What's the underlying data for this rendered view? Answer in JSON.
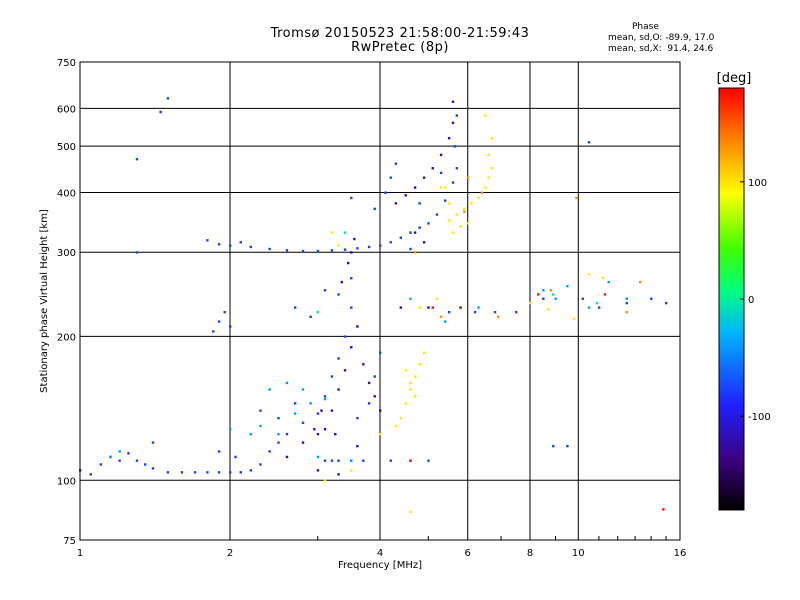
{
  "title": "Tromsø 20150523 21:58:00-21:59:43",
  "subtitle": "RwPretec (8p)",
  "phase_info": {
    "header": "Phase",
    "line1": "mean, sd,O: -89.9, 17.0",
    "line2": "mean, sd,X:  91.4, 24.6"
  },
  "chart_data": {
    "type": "scatter",
    "xlabel": "Frequency [MHz]",
    "ylabel": "Stationary phase Virtual Height [km]",
    "xscale": "log",
    "yscale": "log",
    "xlim": [
      1,
      16
    ],
    "ylim": [
      75,
      750
    ],
    "x_ticks": [
      1,
      2,
      4,
      6,
      8,
      10,
      16
    ],
    "x_tick_labels": [
      "1",
      "2",
      "4",
      "6",
      "8",
      "10",
      "16"
    ],
    "y_ticks": [
      75,
      100,
      200,
      300,
      400,
      500,
      600,
      750
    ],
    "y_tick_labels": [
      "75",
      "100",
      "200",
      "300",
      "400",
      "500",
      "600",
      "750"
    ],
    "grid": true,
    "colorbar": {
      "label": "[deg]",
      "range": [
        -180,
        180
      ],
      "ticks": [
        100,
        0,
        -100
      ],
      "tick_labels": [
        "100",
        "0",
        "-100"
      ],
      "colors": [
        "#000000",
        "#3c0080",
        "#2020ff",
        "#00b4ff",
        "#00ff80",
        "#40ff00",
        "#ffff00",
        "#ff8000",
        "#ff0000"
      ]
    },
    "series": [
      {
        "phase": -100,
        "color": "#2040e0",
        "points": [
          [
            1.0,
            105
          ],
          [
            1.05,
            103
          ],
          [
            1.1,
            108
          ],
          [
            1.15,
            112
          ],
          [
            1.2,
            110
          ],
          [
            1.25,
            114
          ],
          [
            1.3,
            110
          ],
          [
            1.35,
            108
          ],
          [
            1.4,
            106
          ],
          [
            1.5,
            104
          ],
          [
            1.6,
            104
          ],
          [
            1.7,
            104
          ],
          [
            1.8,
            104
          ],
          [
            1.9,
            104
          ],
          [
            2.0,
            104
          ],
          [
            2.1,
            104
          ],
          [
            2.2,
            105
          ],
          [
            2.3,
            108
          ],
          [
            2.4,
            115
          ],
          [
            2.5,
            120
          ],
          [
            2.6,
            125
          ],
          [
            2.8,
            132
          ],
          [
            3.0,
            138
          ],
          [
            1.85,
            205
          ],
          [
            1.9,
            215
          ],
          [
            1.95,
            225
          ],
          [
            2.0,
            210
          ],
          [
            1.8,
            318
          ],
          [
            1.9,
            312
          ],
          [
            2.0,
            310
          ],
          [
            2.1,
            315
          ],
          [
            2.2,
            308
          ],
          [
            2.4,
            305
          ],
          [
            2.6,
            303
          ],
          [
            2.8,
            302
          ],
          [
            3.0,
            302
          ],
          [
            3.2,
            303
          ],
          [
            3.4,
            304
          ],
          [
            3.6,
            306
          ],
          [
            3.8,
            308
          ],
          [
            4.0,
            310
          ],
          [
            4.2,
            315
          ],
          [
            4.4,
            322
          ],
          [
            4.6,
            330
          ],
          [
            4.8,
            338
          ],
          [
            5.0,
            345
          ],
          [
            5.2,
            360
          ],
          [
            5.4,
            385
          ],
          [
            5.6,
            420
          ],
          [
            5.7,
            450
          ],
          [
            5.65,
            500
          ],
          [
            5.7,
            580
          ],
          [
            4.1,
            400
          ],
          [
            4.2,
            430
          ],
          [
            4.3,
            460
          ],
          [
            3.1,
            150
          ],
          [
            3.2,
            165
          ],
          [
            3.3,
            180
          ],
          [
            3.4,
            200
          ],
          [
            3.5,
            230
          ],
          [
            3.5,
            265
          ],
          [
            3.6,
            135
          ],
          [
            3.8,
            145
          ],
          [
            3.9,
            165
          ],
          [
            4.0,
            185
          ],
          [
            3.1,
            110
          ],
          [
            3.2,
            110
          ],
          [
            3.3,
            110
          ],
          [
            3.5,
            110
          ],
          [
            3.7,
            110
          ],
          [
            4.2,
            110
          ],
          [
            4.6,
            110
          ],
          [
            5.0,
            110
          ],
          [
            1.4,
            120
          ],
          [
            1.3,
            470
          ],
          [
            1.45,
            590
          ],
          [
            1.5,
            630
          ],
          [
            1.3,
            300
          ],
          [
            10.5,
            510
          ],
          [
            9.5,
            118
          ],
          [
            8.9,
            118
          ],
          [
            7.5,
            225
          ],
          [
            6.8,
            225
          ],
          [
            6.2,
            225
          ],
          [
            5.5,
            225
          ],
          [
            8.5,
            240
          ],
          [
            10.2,
            240
          ],
          [
            11.0,
            230
          ],
          [
            12.5,
            235
          ],
          [
            14.0,
            240
          ],
          [
            15.0,
            235
          ],
          [
            3.1,
            250
          ],
          [
            3.3,
            245
          ],
          [
            2.9,
            220
          ],
          [
            2.7,
            230
          ],
          [
            2.3,
            140
          ],
          [
            2.5,
            135
          ],
          [
            2.7,
            145
          ],
          [
            1.9,
            115
          ],
          [
            2.05,
            112
          ],
          [
            4.8,
            380
          ],
          [
            5.3,
            440
          ],
          [
            4.6,
            305
          ],
          [
            3.5,
            390
          ],
          [
            3.9,
            370
          ]
        ]
      },
      {
        "phase": -130,
        "color": "#3010a0",
        "points": [
          [
            3.0,
            125
          ],
          [
            3.1,
            128
          ],
          [
            3.2,
            140
          ],
          [
            3.3,
            155
          ],
          [
            3.4,
            170
          ],
          [
            3.5,
            190
          ],
          [
            3.6,
            210
          ],
          [
            3.7,
            175
          ],
          [
            3.8,
            160
          ],
          [
            3.9,
            150
          ],
          [
            4.0,
            140
          ],
          [
            3.35,
            260
          ],
          [
            3.45,
            285
          ],
          [
            3.5,
            300
          ],
          [
            3.55,
            320
          ],
          [
            4.3,
            380
          ],
          [
            4.5,
            395
          ],
          [
            4.7,
            410
          ],
          [
            4.9,
            430
          ],
          [
            5.1,
            450
          ],
          [
            5.3,
            480
          ],
          [
            5.5,
            520
          ],
          [
            5.6,
            560
          ],
          [
            5.6,
            620
          ],
          [
            3.0,
            105
          ],
          [
            3.3,
            103
          ],
          [
            3.6,
            118
          ],
          [
            2.6,
            112
          ],
          [
            2.8,
            120
          ],
          [
            4.4,
            230
          ],
          [
            5.0,
            230
          ],
          [
            5.8,
            230
          ],
          [
            4.7,
            330
          ],
          [
            4.9,
            315
          ],
          [
            3.05,
            140
          ],
          [
            3.25,
            125
          ],
          [
            2.95,
            128
          ]
        ]
      },
      {
        "phase": -80,
        "color": "#00a0f0",
        "points": [
          [
            2.3,
            130
          ],
          [
            2.5,
            125
          ],
          [
            2.7,
            138
          ],
          [
            2.9,
            145
          ],
          [
            3.1,
            148
          ],
          [
            2.4,
            155
          ],
          [
            2.6,
            160
          ],
          [
            2.8,
            155
          ],
          [
            1.2,
            115
          ],
          [
            1.15,
            112
          ],
          [
            8.5,
            250
          ],
          [
            9.0,
            240
          ],
          [
            9.5,
            255
          ],
          [
            10.5,
            230
          ],
          [
            11.5,
            260
          ],
          [
            12.5,
            240
          ],
          [
            3.5,
            110
          ],
          [
            3.0,
            112
          ],
          [
            2.2,
            125
          ],
          [
            2.0,
            128
          ],
          [
            4.6,
            240
          ],
          [
            5.4,
            215
          ],
          [
            6.3,
            230
          ]
        ]
      },
      {
        "phase": 110,
        "color": "#f0f000",
        "points": [
          [
            4.3,
            130
          ],
          [
            4.4,
            135
          ],
          [
            4.5,
            145
          ],
          [
            4.6,
            155
          ],
          [
            4.7,
            165
          ],
          [
            4.8,
            175
          ],
          [
            4.9,
            185
          ],
          [
            4.5,
            170
          ],
          [
            4.6,
            160
          ],
          [
            4.7,
            150
          ],
          [
            5.5,
            350
          ],
          [
            5.7,
            360
          ],
          [
            5.9,
            370
          ],
          [
            6.1,
            380
          ],
          [
            6.3,
            390
          ],
          [
            6.5,
            410
          ],
          [
            6.6,
            430
          ],
          [
            6.7,
            450
          ],
          [
            6.6,
            480
          ],
          [
            6.7,
            520
          ],
          [
            6.5,
            580
          ],
          [
            5.8,
            340
          ],
          [
            6.0,
            345
          ],
          [
            5.6,
            330
          ],
          [
            5.5,
            380
          ],
          [
            5.4,
            410
          ],
          [
            3.3,
            310
          ],
          [
            3.2,
            330
          ],
          [
            10.5,
            270
          ],
          [
            11.2,
            265
          ],
          [
            3.5,
            105
          ],
          [
            3.1,
            100
          ],
          [
            4.6,
            86
          ],
          [
            5.2,
            240
          ],
          [
            8.0,
            235
          ],
          [
            8.7,
            228
          ],
          [
            4.0,
            125
          ],
          [
            5.3,
            410
          ],
          [
            4.8,
            230
          ],
          [
            9.8,
            218
          ]
        ]
      },
      {
        "phase": 140,
        "color": "#ff9000",
        "points": [
          [
            5.9,
            365
          ],
          [
            6.4,
            400
          ],
          [
            4.7,
            300
          ],
          [
            6.0,
            430
          ],
          [
            5.3,
            220
          ],
          [
            6.9,
            220
          ],
          [
            8.8,
            250
          ],
          [
            12.5,
            225
          ],
          [
            13.3,
            260
          ],
          [
            9.9,
            390
          ]
        ]
      },
      {
        "phase": 170,
        "color": "#ff1010",
        "points": [
          [
            4.6,
            110
          ],
          [
            14.8,
            87
          ],
          [
            5.1,
            230
          ],
          [
            8.3,
            245
          ],
          [
            11.3,
            245
          ]
        ]
      },
      {
        "phase": 0,
        "color": "#10e080",
        "points": [
          [
            3.4,
            330
          ],
          [
            3.0,
            225
          ],
          [
            8.9,
            245
          ],
          [
            10.9,
            235
          ]
        ]
      }
    ]
  }
}
